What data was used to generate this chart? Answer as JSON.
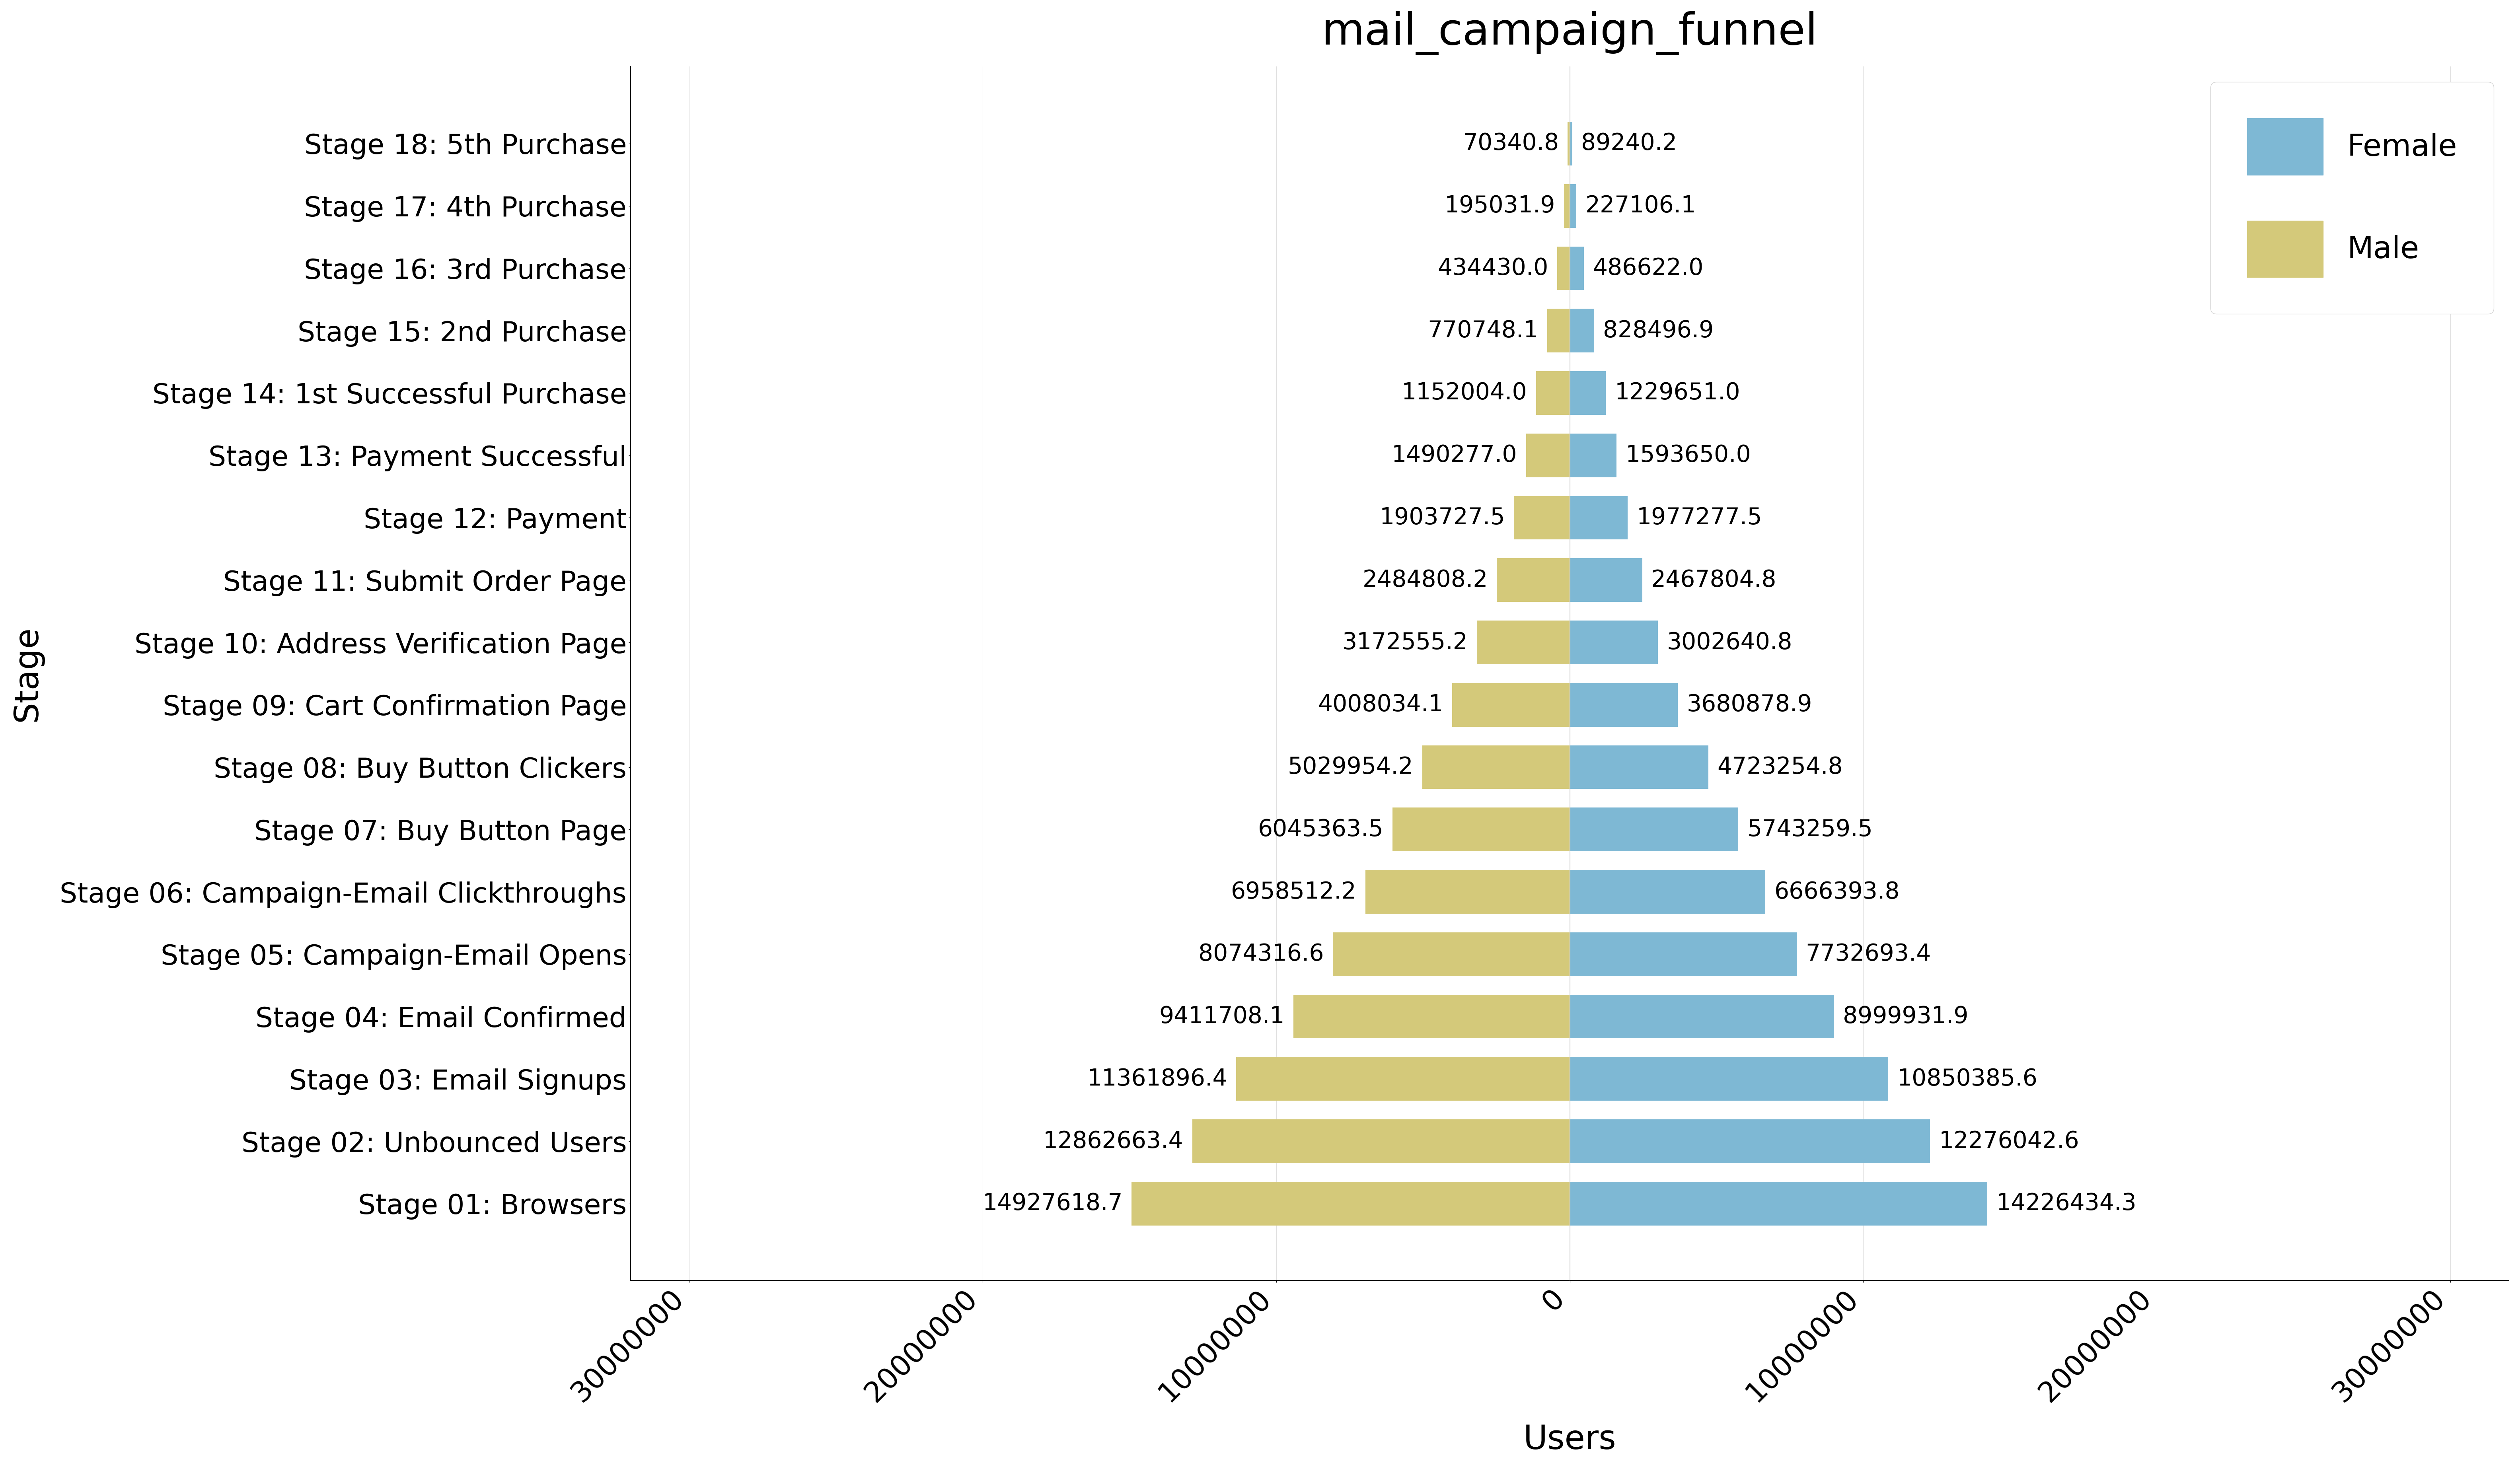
{
  "title": "mail_campaign_funnel",
  "xlabel": "Users",
  "ylabel": "Stage",
  "stages": [
    "Stage 01: Browsers",
    "Stage 02: Unbounced Users",
    "Stage 03: Email Signups",
    "Stage 04: Email Confirmed",
    "Stage 05: Campaign-Email Opens",
    "Stage 06: Campaign-Email Clickthroughs",
    "Stage 07: Buy Button Page",
    "Stage 08: Buy Button Clickers",
    "Stage 09: Cart Confirmation Page",
    "Stage 10: Address Verification Page",
    "Stage 11: Submit Order Page",
    "Stage 12: Payment",
    "Stage 13: Payment Successful",
    "Stage 14: 1st Successful Purchase",
    "Stage 15: 2nd Purchase",
    "Stage 16: 3rd Purchase",
    "Stage 17: 4th Purchase",
    "Stage 18: 5th Purchase"
  ],
  "male_values": [
    14927618.7,
    12862663.4,
    11361896.4,
    9411708.1,
    8074316.6,
    6958512.2,
    6045363.5,
    5029954.2,
    4008034.1,
    3172555.2,
    2484808.2,
    1903727.5,
    1490277.0,
    1152004.0,
    770748.1,
    434430.0,
    195031.9,
    70340.8
  ],
  "female_values": [
    14226434.3,
    12276042.6,
    10850385.6,
    8999931.9,
    7732693.4,
    6666393.8,
    5743259.5,
    4723254.8,
    3680878.9,
    3002640.8,
    2467804.8,
    1977277.5,
    1593650.0,
    1229651.0,
    828496.9,
    486622.0,
    227106.1,
    89240.2
  ],
  "male_color": "#d4c97a",
  "female_color": "#7eb8d4",
  "background_color": "#ffffff",
  "xlim": 32000000,
  "title_fontsize": 80,
  "label_fontsize": 60,
  "tick_fontsize": 52,
  "annotation_fontsize": 42,
  "legend_fontsize": 55,
  "ytick_fontsize": 50
}
